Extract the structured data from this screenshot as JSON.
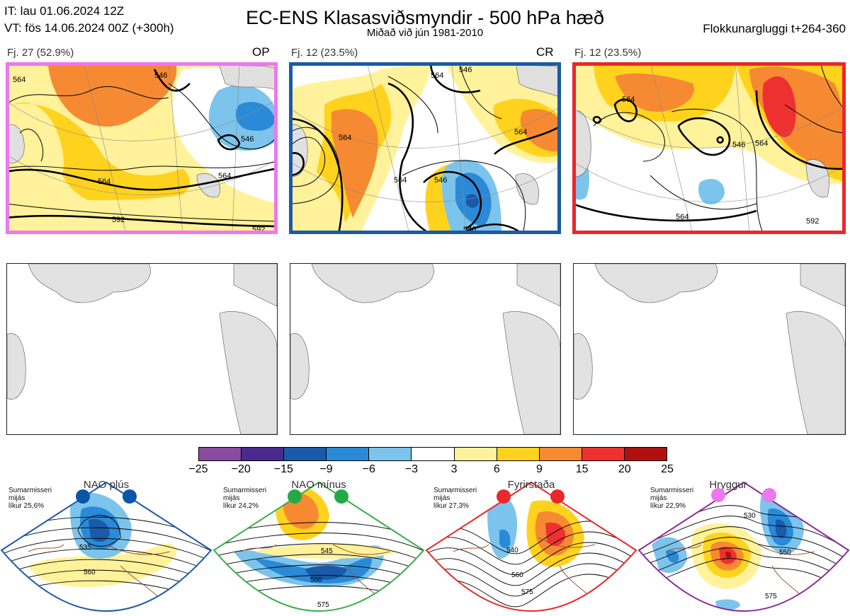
{
  "header": {
    "init_time": "IT: lau 01.06.2024 12Z",
    "valid_time": "VT: fös 14.06.2024 00Z  (+300h)",
    "title": "EC-ENS Klasasviðsmyndir - 500 hPa hæð",
    "subtitle": "Miðað við jún 1981-2010",
    "window": "Flokkunargluggi t+264-360"
  },
  "clusters": [
    {
      "label": "Fj. 27 (52.9%)",
      "code": "OP",
      "border_color": "#ee77ee",
      "contours": [
        "564",
        "546",
        "564",
        "592",
        "564",
        "546",
        "592"
      ]
    },
    {
      "label": "Fj. 12 (23.5%)",
      "code": "CR",
      "border_color": "#1a5aa8",
      "contours": [
        "564",
        "546",
        "564",
        "546",
        "564",
        "564",
        "546"
      ]
    },
    {
      "label": "Fj. 12 (23.5%)",
      "code": "",
      "border_color": "#e8282a",
      "contours": [
        "564",
        "564",
        "546",
        "564",
        "592"
      ]
    }
  ],
  "colorbar": {
    "ticks": [
      "−25",
      "−20",
      "−15",
      "−9",
      "−6",
      "−3",
      "3",
      "6",
      "9",
      "15",
      "20",
      "25"
    ],
    "colors": [
      "#8a4a9e",
      "#4a2a8e",
      "#1a5aa8",
      "#2a8ad8",
      "#7cc4ec",
      "#ffffff",
      "#fff29a",
      "#ffd21e",
      "#f58a32",
      "#ee3030",
      "#b01010"
    ]
  },
  "regimes": [
    {
      "name": "NAO plús",
      "season": [
        "Sumarmisseri",
        "mijás",
        "líkur 25,6%"
      ],
      "border_color": "#1a5aa8",
      "dot_color": "#0a55a8",
      "contours": [
        "535",
        "560"
      ]
    },
    {
      "name": "NAO mínus",
      "season": [
        "Sumarmisseri",
        "mijás",
        "líkur 24,2%"
      ],
      "border_color": "#3aae4a",
      "dot_color": "#22aa44",
      "contours": [
        "545",
        "560",
        "575"
      ]
    },
    {
      "name": "Fyrirstaða",
      "season": [
        "Sumarmisseri",
        "mijás",
        "líkur 27,3%"
      ],
      "border_color": "#e8282a",
      "dot_color": "#e8282a",
      "contours": [
        "540",
        "560",
        "575"
      ]
    },
    {
      "name": "Hryggur",
      "season": [
        "Sumarmisseri",
        "mijás",
        "líkur 22,9%"
      ],
      "border_color": "#8a2a9a",
      "dot_color": "#ee77ee",
      "contours": [
        "530",
        "550",
        "575"
      ]
    }
  ]
}
